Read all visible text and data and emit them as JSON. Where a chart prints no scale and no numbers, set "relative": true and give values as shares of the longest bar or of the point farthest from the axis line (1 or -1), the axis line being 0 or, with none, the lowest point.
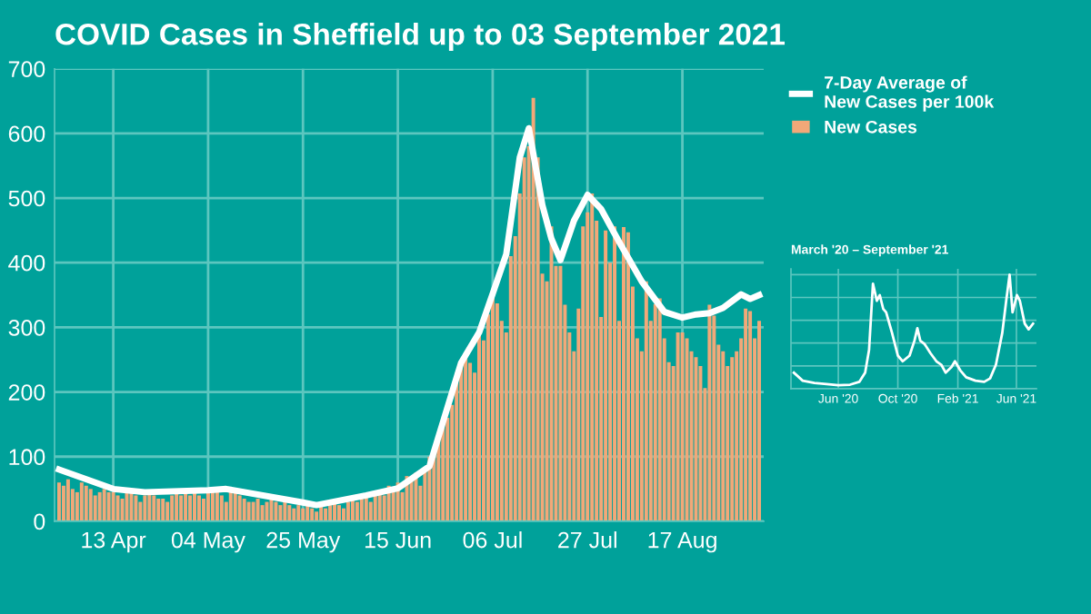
{
  "chart_data": [
    {
      "type": "bar",
      "title": "COVID Cases in Sheffield up to 03 September 2021",
      "x": [
        "2021-04-01",
        "2021-04-02",
        "2021-04-03",
        "2021-04-04",
        "2021-04-05",
        "2021-04-06",
        "2021-04-07",
        "2021-04-08",
        "2021-04-09",
        "2021-04-10",
        "2021-04-11",
        "2021-04-12",
        "2021-04-13",
        "2021-04-14",
        "2021-04-15",
        "2021-04-16",
        "2021-04-17",
        "2021-04-18",
        "2021-04-19",
        "2021-04-20",
        "2021-04-21",
        "2021-04-22",
        "2021-04-23",
        "2021-04-24",
        "2021-04-25",
        "2021-04-26",
        "2021-04-27",
        "2021-04-28",
        "2021-04-29",
        "2021-04-30",
        "2021-05-01",
        "2021-05-02",
        "2021-05-03",
        "2021-05-04",
        "2021-05-05",
        "2021-05-06",
        "2021-05-07",
        "2021-05-08",
        "2021-05-09",
        "2021-05-10",
        "2021-05-11",
        "2021-05-12",
        "2021-05-13",
        "2021-05-14",
        "2021-05-15",
        "2021-05-16",
        "2021-05-17",
        "2021-05-18",
        "2021-05-19",
        "2021-05-20",
        "2021-05-21",
        "2021-05-22",
        "2021-05-23",
        "2021-05-24",
        "2021-05-25",
        "2021-05-26",
        "2021-05-27",
        "2021-05-28",
        "2021-05-29",
        "2021-05-30",
        "2021-05-31",
        "2021-06-01",
        "2021-06-02",
        "2021-06-03",
        "2021-06-04",
        "2021-06-05",
        "2021-06-06",
        "2021-06-07",
        "2021-06-08",
        "2021-06-09",
        "2021-06-10",
        "2021-06-11",
        "2021-06-12",
        "2021-06-13",
        "2021-06-14",
        "2021-06-15",
        "2021-06-16",
        "2021-06-17",
        "2021-06-18",
        "2021-06-19",
        "2021-06-20",
        "2021-06-21",
        "2021-06-22",
        "2021-06-23",
        "2021-06-24",
        "2021-06-25",
        "2021-06-26",
        "2021-06-27",
        "2021-06-28",
        "2021-06-29",
        "2021-06-30",
        "2021-07-01",
        "2021-07-02",
        "2021-07-03",
        "2021-07-04",
        "2021-07-05",
        "2021-07-06",
        "2021-07-07",
        "2021-07-08",
        "2021-07-09",
        "2021-07-10",
        "2021-07-11",
        "2021-07-12",
        "2021-07-13",
        "2021-07-14",
        "2021-07-15",
        "2021-07-16",
        "2021-07-17",
        "2021-07-18",
        "2021-07-19",
        "2021-07-20",
        "2021-07-21",
        "2021-07-22",
        "2021-07-23",
        "2021-07-24",
        "2021-07-25",
        "2021-07-26",
        "2021-07-27",
        "2021-07-28",
        "2021-07-29",
        "2021-07-30",
        "2021-07-31",
        "2021-08-01",
        "2021-08-02",
        "2021-08-03",
        "2021-08-04",
        "2021-08-05",
        "2021-08-06",
        "2021-08-07",
        "2021-08-08",
        "2021-08-09",
        "2021-08-10",
        "2021-08-11",
        "2021-08-12",
        "2021-08-13",
        "2021-08-14",
        "2021-08-15",
        "2021-08-16",
        "2021-08-17",
        "2021-08-18",
        "2021-08-19",
        "2021-08-20",
        "2021-08-21",
        "2021-08-22",
        "2021-08-23",
        "2021-08-24",
        "2021-08-25",
        "2021-08-26",
        "2021-08-27",
        "2021-08-28",
        "2021-08-29",
        "2021-08-30",
        "2021-08-31",
        "2021-09-01",
        "2021-09-02",
        "2021-09-03"
      ],
      "series": [
        {
          "name": "7-Day Average of\nNew Cases per 100k",
          "type": "line",
          "color": "#ffffff",
          "x": [
            "2021-04-01",
            "2021-04-13",
            "2021-04-20",
            "2021-05-04",
            "2021-05-08",
            "2021-05-25",
            "2021-05-28",
            "2021-06-08",
            "2021-06-15",
            "2021-06-22",
            "2021-06-29",
            "2021-07-03",
            "2021-07-06",
            "2021-07-09",
            "2021-07-12",
            "2021-07-14",
            "2021-07-17",
            "2021-07-19",
            "2021-07-21",
            "2021-07-24",
            "2021-07-27",
            "2021-07-30",
            "2021-08-03",
            "2021-08-08",
            "2021-08-13",
            "2021-08-17",
            "2021-08-20",
            "2021-08-23",
            "2021-08-26",
            "2021-08-30",
            "2021-09-01",
            "2021-09-03"
          ],
          "values": [
            80,
            50,
            45,
            48,
            50,
            29,
            25,
            40,
            51,
            85,
            245,
            292,
            352,
            413,
            563,
            608,
            489,
            437,
            404,
            465,
            505,
            483,
            432,
            371,
            324,
            315,
            320,
            322,
            330,
            351,
            344,
            350
          ]
        },
        {
          "name": "New Cases",
          "type": "bar",
          "color": "#f2a878",
          "values": [
            60,
            55,
            65,
            50,
            45,
            60,
            55,
            50,
            40,
            45,
            50,
            45,
            45,
            40,
            35,
            50,
            45,
            40,
            30,
            40,
            45,
            40,
            35,
            35,
            30,
            40,
            45,
            40,
            45,
            40,
            45,
            40,
            35,
            45,
            50,
            45,
            40,
            30,
            45,
            50,
            40,
            35,
            30,
            30,
            35,
            25,
            30,
            35,
            30,
            25,
            30,
            25,
            20,
            25,
            20,
            25,
            20,
            15,
            25,
            20,
            25,
            30,
            25,
            20,
            30,
            35,
            30,
            35,
            40,
            30,
            40,
            45,
            40,
            55,
            45,
            60,
            45,
            70,
            65,
            75,
            55,
            80,
            100,
            110,
            130,
            150,
            160,
            180,
            230,
            250,
            260,
            245,
            230,
            300,
            280,
            320,
            350,
            337,
            310,
            292,
            410,
            441,
            507,
            563,
            580,
            655,
            563,
            383,
            371,
            456,
            395,
            395,
            335,
            292,
            263,
            329,
            456,
            478,
            507,
            465,
            316,
            450,
            400,
            456,
            310,
            455,
            447,
            363,
            283,
            263,
            371,
            310,
            336,
            345,
            283,
            246,
            240,
            292,
            292,
            283,
            263,
            254,
            240,
            206,
            335,
            318,
            273,
            263,
            240,
            254,
            263,
            283,
            329,
            325,
            283,
            310
          ]
        }
      ],
      "xlim": [
        "2021-03-31",
        "2021-09-04"
      ],
      "xticks": [
        {
          "value": "2021-04-13",
          "label": "13 Apr"
        },
        {
          "value": "2021-05-04",
          "label": "04 May"
        },
        {
          "value": "2021-05-25",
          "label": "25 May"
        },
        {
          "value": "2021-06-15",
          "label": "15 Jun"
        },
        {
          "value": "2021-07-06",
          "label": "06 Jul"
        },
        {
          "value": "2021-07-27",
          "label": "27 Jul"
        },
        {
          "value": "2021-08-17",
          "label": "17 Aug"
        }
      ],
      "ylim": [
        0,
        700
      ],
      "yticks": [
        0,
        100,
        200,
        300,
        400,
        500,
        600,
        700
      ],
      "grid": true,
      "legend": "right"
    },
    {
      "type": "line",
      "title": "March '20 – September '21",
      "relative": true,
      "tick_labels": "x",
      "grid": true,
      "x": [
        "2020-03-02",
        "2020-03-20",
        "2020-04-13",
        "2020-05-08",
        "2020-06-01",
        "2020-06-25",
        "2020-07-14",
        "2020-07-26",
        "2020-08-03",
        "2020-08-11",
        "2020-08-19",
        "2020-08-25",
        "2020-09-01",
        "2020-09-07",
        "2020-09-19",
        "2020-10-01",
        "2020-10-11",
        "2020-10-25",
        "2020-11-04",
        "2020-11-10",
        "2020-11-16",
        "2020-11-25",
        "2020-12-07",
        "2020-12-19",
        "2020-12-29",
        "2021-01-07",
        "2021-01-19",
        "2021-01-26",
        "2021-02-06",
        "2021-02-18",
        "2021-03-09",
        "2021-03-27",
        "2021-04-08",
        "2021-04-20",
        "2021-05-03",
        "2021-05-11",
        "2021-05-18",
        "2021-05-24",
        "2021-06-02",
        "2021-06-08",
        "2021-06-18",
        "2021-06-26",
        "2021-07-05"
      ],
      "series": [
        {
          "color": "#ffffff",
          "values": [
            0.14,
            0.07,
            0.05,
            0.04,
            0.03,
            0.035,
            0.06,
            0.14,
            0.34,
            0.92,
            0.77,
            0.82,
            0.7,
            0.67,
            0.49,
            0.29,
            0.24,
            0.29,
            0.42,
            0.53,
            0.42,
            0.39,
            0.31,
            0.24,
            0.21,
            0.14,
            0.19,
            0.24,
            0.16,
            0.1,
            0.07,
            0.06,
            0.09,
            0.21,
            0.49,
            0.77,
            1.0,
            0.67,
            0.82,
            0.77,
            0.57,
            0.52,
            0.57
          ]
        }
      ],
      "xlim": [
        "2020-02-25",
        "2021-07-12"
      ],
      "xticks": [
        {
          "value": "2020-06-01",
          "label": "Jun '20"
        },
        {
          "value": "2020-10-01",
          "label": "Oct '20"
        },
        {
          "value": "2021-02-01",
          "label": "Feb '21"
        },
        {
          "value": "2021-06-01",
          "label": "Jun '21"
        }
      ]
    }
  ]
}
